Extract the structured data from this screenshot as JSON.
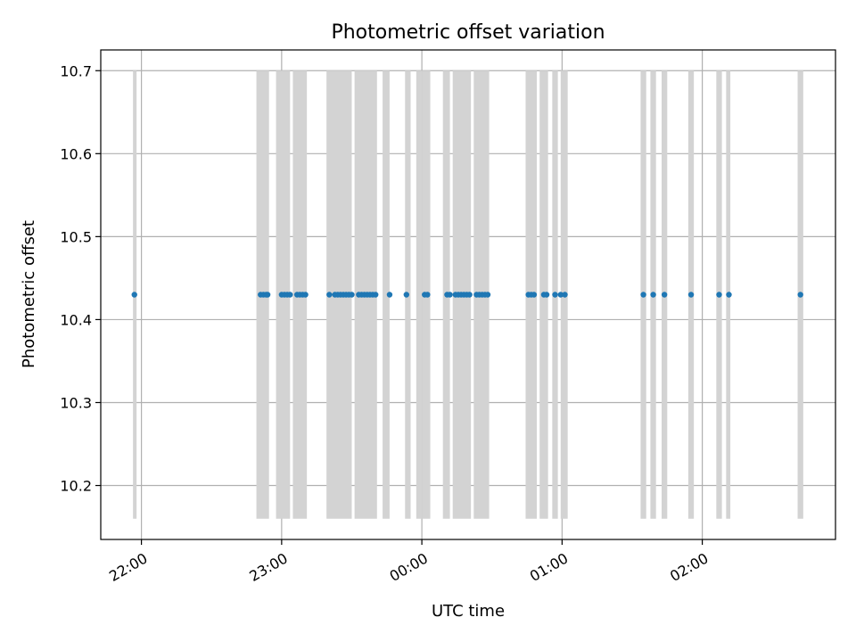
{
  "chart_data": {
    "type": "scatter",
    "title": "Photometric offset variation",
    "xlabel": "UTC time",
    "ylabel": "Photometric offset",
    "x_unit": "hours since 00:00 UTC",
    "xlim": [
      -2.29,
      2.95
    ],
    "ylim": [
      10.135,
      10.725
    ],
    "grid": true,
    "legend": "none",
    "xticks": [
      {
        "value": -2,
        "label": "22:00"
      },
      {
        "value": -1,
        "label": "23:00"
      },
      {
        "value": 0,
        "label": "00:00"
      },
      {
        "value": 1,
        "label": "01:00"
      },
      {
        "value": 2,
        "label": "02:00"
      }
    ],
    "yticks": [
      {
        "value": 10.2,
        "label": "10.2"
      },
      {
        "value": 10.3,
        "label": "10.3"
      },
      {
        "value": 10.4,
        "label": "10.4"
      },
      {
        "value": 10.5,
        "label": "10.5"
      },
      {
        "value": 10.6,
        "label": "10.6"
      },
      {
        "value": 10.7,
        "label": "10.7"
      }
    ],
    "bands": {
      "color": "#d3d3d3",
      "ymin": 10.16,
      "ymax": 10.7,
      "ranges": [
        [
          -2.06,
          -2.035
        ],
        [
          -1.18,
          -1.09
        ],
        [
          -1.04,
          -0.94
        ],
        [
          -0.92,
          -0.82
        ],
        [
          -0.68,
          -0.5
        ],
        [
          -0.48,
          -0.32
        ],
        [
          -0.28,
          -0.23
        ],
        [
          -0.12,
          -0.08
        ],
        [
          -0.04,
          -0.0
        ],
        [
          0.0,
          0.06
        ],
        [
          0.15,
          0.2
        ],
        [
          0.22,
          0.35
        ],
        [
          0.37,
          0.48
        ],
        [
          0.74,
          0.82
        ],
        [
          0.84,
          0.9
        ],
        [
          0.93,
          0.97
        ],
        [
          0.99,
          1.04
        ],
        [
          1.56,
          1.6
        ],
        [
          1.63,
          1.67
        ],
        [
          1.71,
          1.75
        ],
        [
          1.9,
          1.94
        ],
        [
          2.1,
          2.14
        ],
        [
          2.17,
          2.2
        ],
        [
          2.68,
          2.72
        ]
      ]
    },
    "series": [
      {
        "color": "#1f77b4",
        "x": [
          -2.05,
          -1.15,
          -1.13,
          -1.11,
          -1.1,
          -1.0,
          -0.98,
          -0.96,
          -0.94,
          -0.89,
          -0.87,
          -0.85,
          -0.83,
          -0.66,
          -0.62,
          -0.6,
          -0.58,
          -0.56,
          -0.54,
          -0.52,
          -0.5,
          -0.45,
          -0.43,
          -0.41,
          -0.39,
          -0.37,
          -0.35,
          -0.33,
          -0.23,
          -0.11,
          0.02,
          0.04,
          0.18,
          0.2,
          0.24,
          0.26,
          0.28,
          0.3,
          0.32,
          0.34,
          0.39,
          0.41,
          0.43,
          0.45,
          0.47,
          0.76,
          0.78,
          0.8,
          0.87,
          0.89,
          0.95,
          0.99,
          1.02,
          1.58,
          1.65,
          1.73,
          1.92,
          2.12,
          2.19,
          2.7
        ],
        "y": [
          10.43,
          10.43,
          10.43,
          10.43,
          10.43,
          10.43,
          10.43,
          10.43,
          10.43,
          10.43,
          10.43,
          10.43,
          10.43,
          10.43,
          10.43,
          10.43,
          10.43,
          10.43,
          10.43,
          10.43,
          10.43,
          10.43,
          10.43,
          10.43,
          10.43,
          10.43,
          10.43,
          10.43,
          10.43,
          10.43,
          10.43,
          10.43,
          10.43,
          10.43,
          10.43,
          10.43,
          10.43,
          10.43,
          10.43,
          10.43,
          10.43,
          10.43,
          10.43,
          10.43,
          10.43,
          10.43,
          10.43,
          10.43,
          10.43,
          10.43,
          10.43,
          10.43,
          10.43,
          10.43,
          10.43,
          10.43,
          10.43,
          10.43,
          10.43,
          10.43
        ]
      }
    ]
  }
}
